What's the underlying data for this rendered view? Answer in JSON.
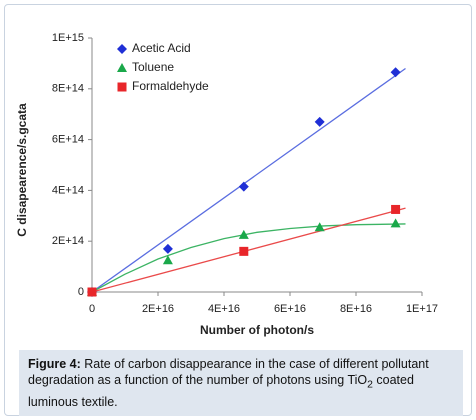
{
  "chart_data": {
    "type": "scatter",
    "x_label": "Number of photon/s",
    "y_label": "C disapearence/s.gcata",
    "xlim": [
      0,
      1e+17
    ],
    "xticks": [
      0,
      {
        "value": 2e+16,
        "label": "2E+16"
      },
      {
        "value": 4e+16,
        "label": "4E+16"
      },
      {
        "value": 6e+16,
        "label": "6E+16"
      },
      {
        "value": 8e+16,
        "label": "8E+16"
      },
      {
        "value": 1e+17,
        "label": "1E+17"
      }
    ],
    "ylim": [
      0,
      1000000000000000.0
    ],
    "yticks": [
      0,
      {
        "value": 200000000000000.0,
        "label": "2E+14"
      },
      {
        "value": 400000000000000.0,
        "label": "4E+14"
      },
      {
        "value": 600000000000000.0,
        "label": "6E+14"
      },
      {
        "value": 800000000000000.0,
        "label": "8E+14"
      },
      {
        "value": 1000000000000000.0,
        "label": "1E+15"
      }
    ],
    "legend": "top-left",
    "series": [
      {
        "name": "Acetic Acid",
        "color": "#1f2fd6",
        "marker": "diamond",
        "x": [
          0,
          2.3e+16,
          4.6e+16,
          6.9e+16,
          9.2e+16
        ],
        "values": [
          0,
          170000000000000.0,
          415000000000000.0,
          670000000000000.0,
          865000000000000.0
        ],
        "fit": {
          "color": "#5a6de0",
          "x": [
            0,
            9.5e+16
          ],
          "values": [
            0,
            880000000000000.0
          ]
        }
      },
      {
        "name": "Toluene",
        "color": "#1aa84a",
        "marker": "triangle",
        "x": [
          0,
          2.3e+16,
          4.6e+16,
          6.9e+16,
          9.2e+16
        ],
        "values": [
          0,
          125000000000000.0,
          225000000000000.0,
          255000000000000.0,
          270000000000000.0
        ],
        "fit": {
          "color": "#3cb464",
          "x": [
            0,
            1e+16,
            2e+16,
            3e+16,
            4e+16,
            5e+16,
            6e+16,
            7e+16,
            8e+16,
            9.5e+16
          ],
          "values": [
            0,
            70000000000000.0,
            130000000000000.0,
            175000000000000.0,
            210000000000000.0,
            235000000000000.0,
            250000000000000.0,
            260000000000000.0,
            265000000000000.0,
            268000000000000.0
          ]
        }
      },
      {
        "name": "Formaldehyde",
        "color": "#e8262a",
        "marker": "square",
        "x": [
          0,
          4.6e+16,
          9.2e+16
        ],
        "values": [
          0,
          160000000000000.0,
          325000000000000.0
        ],
        "fit": {
          "color": "#ea4a4a",
          "x": [
            0,
            9.5e+16
          ],
          "values": [
            0,
            330000000000000.0
          ]
        }
      }
    ]
  },
  "caption": {
    "label": "Figure 4:",
    "text": " Rate of carbon disappearance in the case of different pollutant degradation as a function of the number of photons using TiO",
    "sub": "2",
    "text_end": " coated luminous textile."
  }
}
